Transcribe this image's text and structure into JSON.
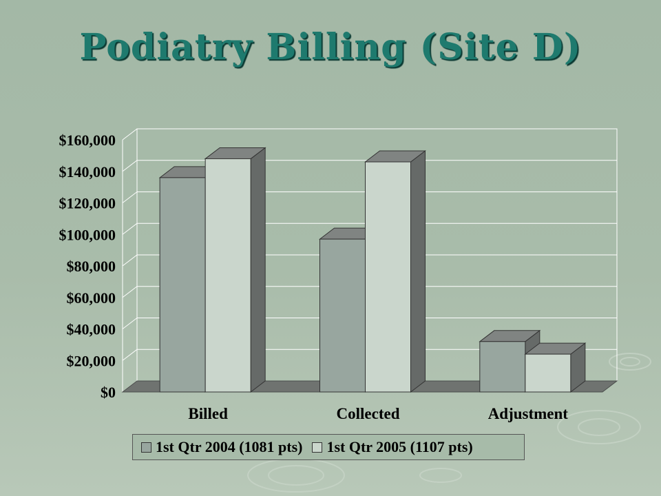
{
  "slide": {
    "title": "Podiatry Billing (Site D)"
  },
  "colors": {
    "series0": "#98a69f",
    "series1": "#cad6cc",
    "side": "#666a68",
    "top": "#808482",
    "floor": "#6f7370",
    "grid": "#ffffff"
  },
  "chart_data": {
    "type": "bar",
    "categories": [
      "Billed",
      "Collected",
      "Adjustment"
    ],
    "series": [
      {
        "name": "1st Qtr 2004 (1081 pts)",
        "values": [
          136000,
          97000,
          32000
        ]
      },
      {
        "name": "1st Qtr 2005 (1107 pts)",
        "values": [
          148000,
          146000,
          24000
        ]
      }
    ],
    "yticks": [
      "$0",
      "$20,000",
      "$40,000",
      "$60,000",
      "$80,000",
      "$100,000",
      "$120,000",
      "$140,000",
      "$160,000"
    ],
    "ylim": [
      0,
      160000
    ],
    "grid": true,
    "legend_position": "bottom"
  }
}
